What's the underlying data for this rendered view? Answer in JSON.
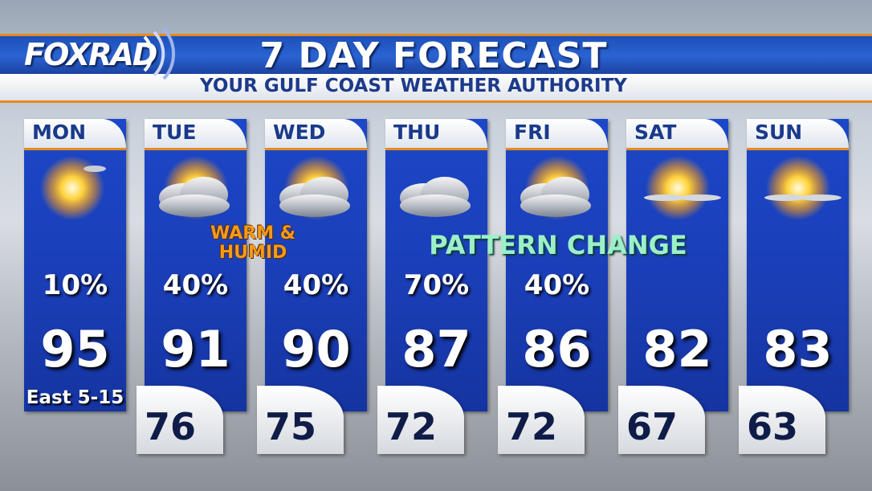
{
  "header": {
    "logo": "FOXRAD",
    "title": "7 DAY FORECAST",
    "subtitle": "YOUR GULF COAST WEATHER AUTHORITY"
  },
  "days": [
    {
      "day": "MON",
      "precip": "10%",
      "high": "95",
      "wind": "East 5-15"
    },
    {
      "day": "TUE",
      "precip": "40%",
      "high": "91",
      "low": "76"
    },
    {
      "day": "WED",
      "precip": "40%",
      "high": "90",
      "low": "75"
    },
    {
      "day": "THU",
      "precip": "70%",
      "high": "87",
      "low": "72"
    },
    {
      "day": "FRI",
      "precip": "40%",
      "high": "86",
      "low": "72"
    },
    {
      "day": "SAT",
      "high": "82",
      "low": "67"
    },
    {
      "day": "SUN",
      "high": "83",
      "low": "63"
    }
  ],
  "annotations": {
    "warm": [
      "WARM &",
      "HUMID"
    ],
    "pattern": "PATTERN CHANGE"
  }
}
